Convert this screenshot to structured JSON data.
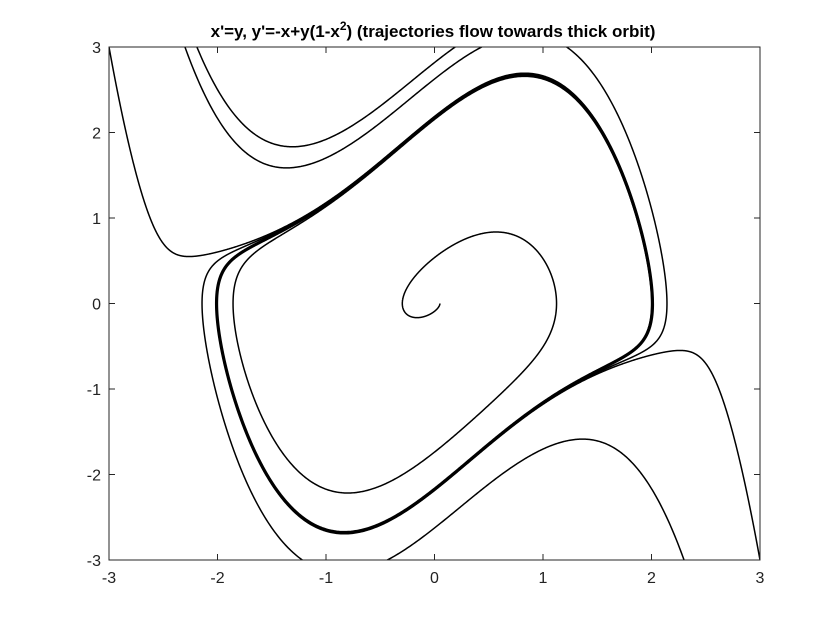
{
  "chart_data": {
    "type": "line",
    "title": "x'=y, y'=-x+y(1-x",
    "title_superscript": "2",
    "title_suffix": ") (trajectories flow towards thick orbit)",
    "xlabel": "",
    "ylabel": "",
    "xlim": [
      -3,
      3
    ],
    "ylim": [
      -3,
      3
    ],
    "xticks": [
      -3,
      -2,
      -1,
      0,
      1,
      2,
      3
    ],
    "yticks": [
      -3,
      -2,
      -1,
      0,
      1,
      2,
      3
    ],
    "xtick_labels": [
      "-3",
      "-2",
      "-1",
      "0",
      "1",
      "2",
      "3"
    ],
    "ytick_labels": [
      "3",
      "2",
      "1",
      "0",
      "-1",
      "-2",
      "-3"
    ],
    "ytick_values": [
      3,
      2,
      1,
      0,
      -1,
      -2,
      -3
    ],
    "grid": false,
    "legend": "none",
    "line_color": "#000000",
    "system": {
      "mu": 1,
      "dt": 0.005
    },
    "series": [
      {
        "role": "limit-cycle",
        "start": [
          2.009,
          0
        ],
        "t_span": 7.0,
        "direction": "forward"
      },
      {
        "role": "inner-spiral",
        "start": [
          0.05,
          0
        ],
        "t_span": 40,
        "direction": "forward"
      },
      {
        "role": "outer-inflow",
        "start": [
          -3.0,
          3.0
        ],
        "t_span": 14,
        "direction": "forward"
      },
      {
        "role": "outer-inflow",
        "start": [
          3.0,
          -3.0
        ],
        "t_span": 14,
        "direction": "forward"
      },
      {
        "role": "outer-inflow",
        "start": [
          -2.3,
          3.0
        ],
        "t_span": 14,
        "direction": "forward"
      },
      {
        "role": "outer-inflow",
        "start": [
          2.3,
          -3.0
        ],
        "t_span": 14,
        "direction": "forward"
      },
      {
        "role": "outer-inflow",
        "start": [
          1.4,
          3.0
        ],
        "t_span": 14,
        "direction": "backward"
      }
    ]
  }
}
